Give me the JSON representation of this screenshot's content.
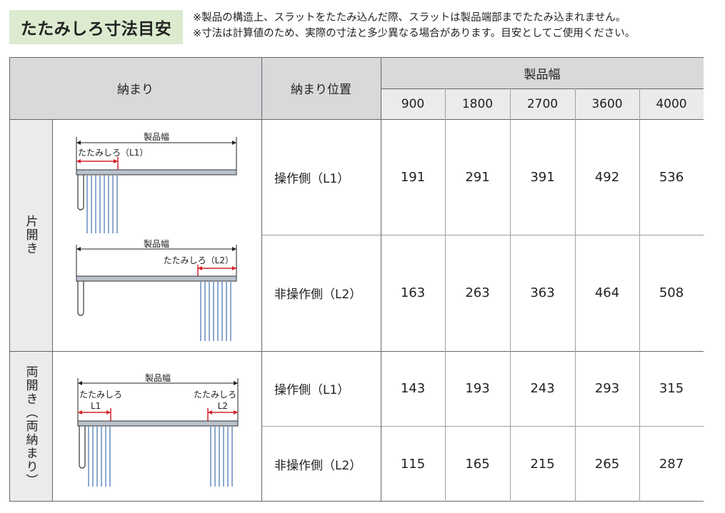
{
  "title": "たたみしろ寸法目安",
  "notes": [
    "※製品の構造上、スラットをたたみ込んだ際、スラットは製品端部までたたみ込まれません。",
    "※寸法は計算値のため、実際の寸法と多少異なる場合があります。目安としてご使用ください。"
  ],
  "header": {
    "mount": "納まり",
    "position": "納まり位置",
    "width": "製品幅",
    "widths": [
      "900",
      "1800",
      "2700",
      "3600",
      "4000"
    ]
  },
  "groups": [
    {
      "label": "片開き",
      "rows": [
        {
          "position": "操作側（L1）",
          "values": [
            "191",
            "291",
            "391",
            "492",
            "536"
          ]
        },
        {
          "position": "非操作側（L2）",
          "values": [
            "163",
            "263",
            "363",
            "464",
            "508"
          ]
        }
      ],
      "diagrams": [
        {
          "width_label": "製品幅",
          "stack_label": "たたみしろ（L1）"
        },
        {
          "width_label": "製品幅",
          "stack_label": "たたみしろ（L2）"
        }
      ]
    },
    {
      "label": "両開き（両納まり）",
      "rows": [
        {
          "position": "操作側（L1）",
          "values": [
            "143",
            "193",
            "243",
            "293",
            "315"
          ]
        },
        {
          "position": "非操作側（L2）",
          "values": [
            "115",
            "165",
            "215",
            "265",
            "287"
          ]
        }
      ],
      "diagrams": [
        {
          "width_label": "製品幅",
          "left_label": "たたみしろ",
          "left_sub": "L1",
          "right_label": "たたみしろ",
          "right_sub": "L2"
        }
      ]
    }
  ],
  "colors": {
    "title_bg": "#dcebcf",
    "header_bg": "#d9d9dc",
    "marker": "#d2232a",
    "slat": "#8aa9cf"
  }
}
